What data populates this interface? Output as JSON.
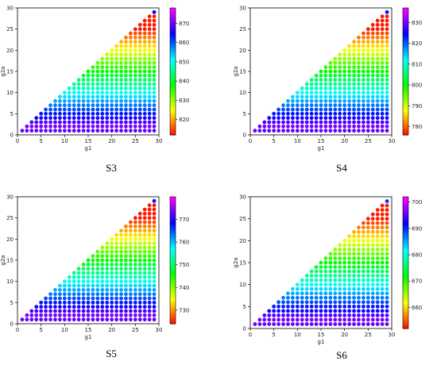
{
  "chart_data": [
    {
      "type": "scatter",
      "caption": "S3",
      "xlabel": "g1",
      "ylabel": "g2a",
      "xlim": [
        0,
        30
      ],
      "ylim": [
        0,
        30
      ],
      "xticks": [
        0,
        5,
        10,
        15,
        20,
        25,
        30
      ],
      "yticks": [
        0,
        5,
        10,
        15,
        20,
        25,
        30
      ],
      "colorbar": {
        "min": 812,
        "max": 878,
        "ticks": [
          820,
          830,
          840,
          850,
          860,
          870
        ],
        "colormap": "gist_rainbow (low=red, high=magenta)"
      },
      "points": {
        "x_range": [
          1,
          29
        ],
        "y_range": [
          1,
          29
        ],
        "rule": "y <= x, integer grid"
      },
      "corner_point": {
        "x": 29,
        "y": 29,
        "value": 865
      }
    },
    {
      "type": "scatter",
      "caption": "S4",
      "xlabel": "g1",
      "ylabel": "g2a",
      "xlim": [
        0,
        30
      ],
      "ylim": [
        0,
        30
      ],
      "xticks": [
        0,
        5,
        10,
        15,
        20,
        25,
        30
      ],
      "yticks": [
        0,
        5,
        10,
        15,
        20,
        25,
        30
      ],
      "colorbar": {
        "min": 776,
        "max": 837,
        "ticks": [
          780,
          790,
          800,
          810,
          820,
          830
        ],
        "colormap": "gist_rainbow (low=red, high=magenta)"
      },
      "points": {
        "x_range": [
          1,
          29
        ],
        "y_range": [
          1,
          29
        ],
        "rule": "y <= x, integer grid"
      },
      "corner_point": {
        "x": 29,
        "y": 29,
        "value": 824
      }
    },
    {
      "type": "scatter",
      "caption": "S5",
      "xlabel": "g1",
      "ylabel": "g2a",
      "xlim": [
        0,
        30
      ],
      "ylim": [
        0,
        30
      ],
      "xticks": [
        0,
        5,
        10,
        15,
        20,
        25,
        30
      ],
      "yticks": [
        0,
        5,
        10,
        15,
        20,
        25,
        30
      ],
      "colorbar": {
        "min": 724,
        "max": 780,
        "ticks": [
          730,
          740,
          750,
          760,
          770
        ],
        "colormap": "gist_rainbow (low=red, high=magenta)"
      },
      "points": {
        "x_range": [
          1,
          29
        ],
        "y_range": [
          1,
          29
        ],
        "rule": "y <= x, integer grid"
      },
      "corner_point": {
        "x": 29,
        "y": 29,
        "value": 770
      }
    },
    {
      "type": "scatter",
      "caption": "S6",
      "xlabel": "g1",
      "ylabel": "g2a",
      "xlim": [
        0,
        30
      ],
      "ylim": [
        0,
        30
      ],
      "xticks": [
        0,
        5,
        10,
        15,
        20,
        25,
        30
      ],
      "yticks": [
        0,
        5,
        10,
        15,
        20,
        25,
        30
      ],
      "colorbar": {
        "min": 652,
        "max": 702,
        "ticks": [
          660,
          670,
          680,
          690,
          700
        ],
        "colormap": "gist_rainbow (low=red, high=magenta)"
      },
      "points": {
        "x_range": [
          1,
          29
        ],
        "y_range": [
          1,
          29
        ],
        "rule": "y <= x, integer grid"
      },
      "corner_point": {
        "x": 29,
        "y": 29,
        "value": 690
      }
    }
  ]
}
